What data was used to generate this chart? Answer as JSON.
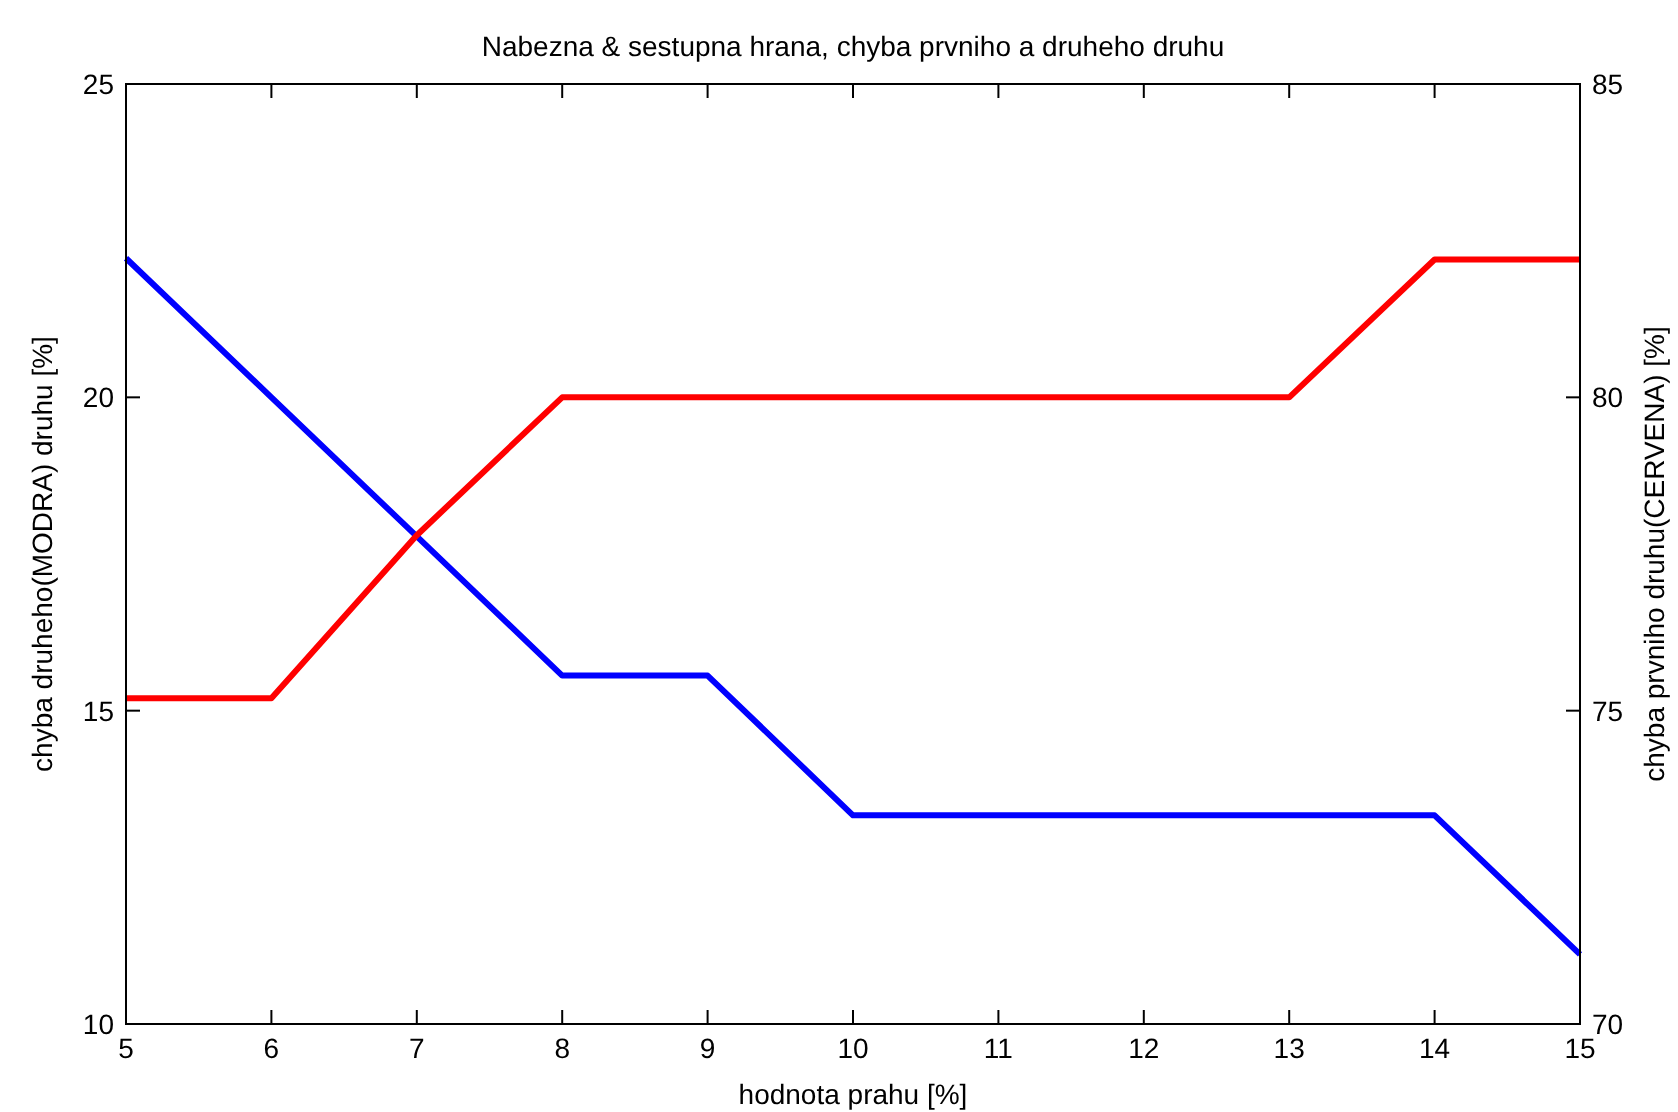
{
  "chart_data": {
    "type": "line",
    "title": "Nabezna & sestupna hrana, chyba prvniho a druheho druhu",
    "xlabel": "hodnota prahu [%]",
    "ylabel": "chyba druheho(MODRA) druhu [%]",
    "y2label": "chyba prvniho druhu(CERVENA) [%]",
    "x": [
      5,
      6,
      7,
      8,
      9,
      10,
      11,
      12,
      13,
      14,
      15
    ],
    "series": [
      {
        "color": "#0000ff",
        "values": [
          22.22,
          20,
          17.78,
          15.56,
          15.56,
          13.33,
          13.33,
          13.33,
          13.33,
          13.33,
          11.11
        ]
      },
      {
        "color": "#ff0000",
        "axis": "y2",
        "values": [
          75.2,
          75.2,
          77.8,
          80,
          80,
          80,
          80,
          80,
          80,
          82.2,
          82.2
        ]
      }
    ],
    "xlim": [
      5,
      15
    ],
    "xticks": [
      5,
      6,
      7,
      8,
      9,
      10,
      11,
      12,
      13,
      14,
      15
    ],
    "ylim": [
      10,
      25
    ],
    "yticks": [
      10,
      15,
      20,
      25
    ],
    "y2lim": [
      70,
      85
    ],
    "y2ticks": [
      70,
      75,
      80,
      85
    ],
    "grid": false,
    "line_style": "solid",
    "marker": "none"
  }
}
